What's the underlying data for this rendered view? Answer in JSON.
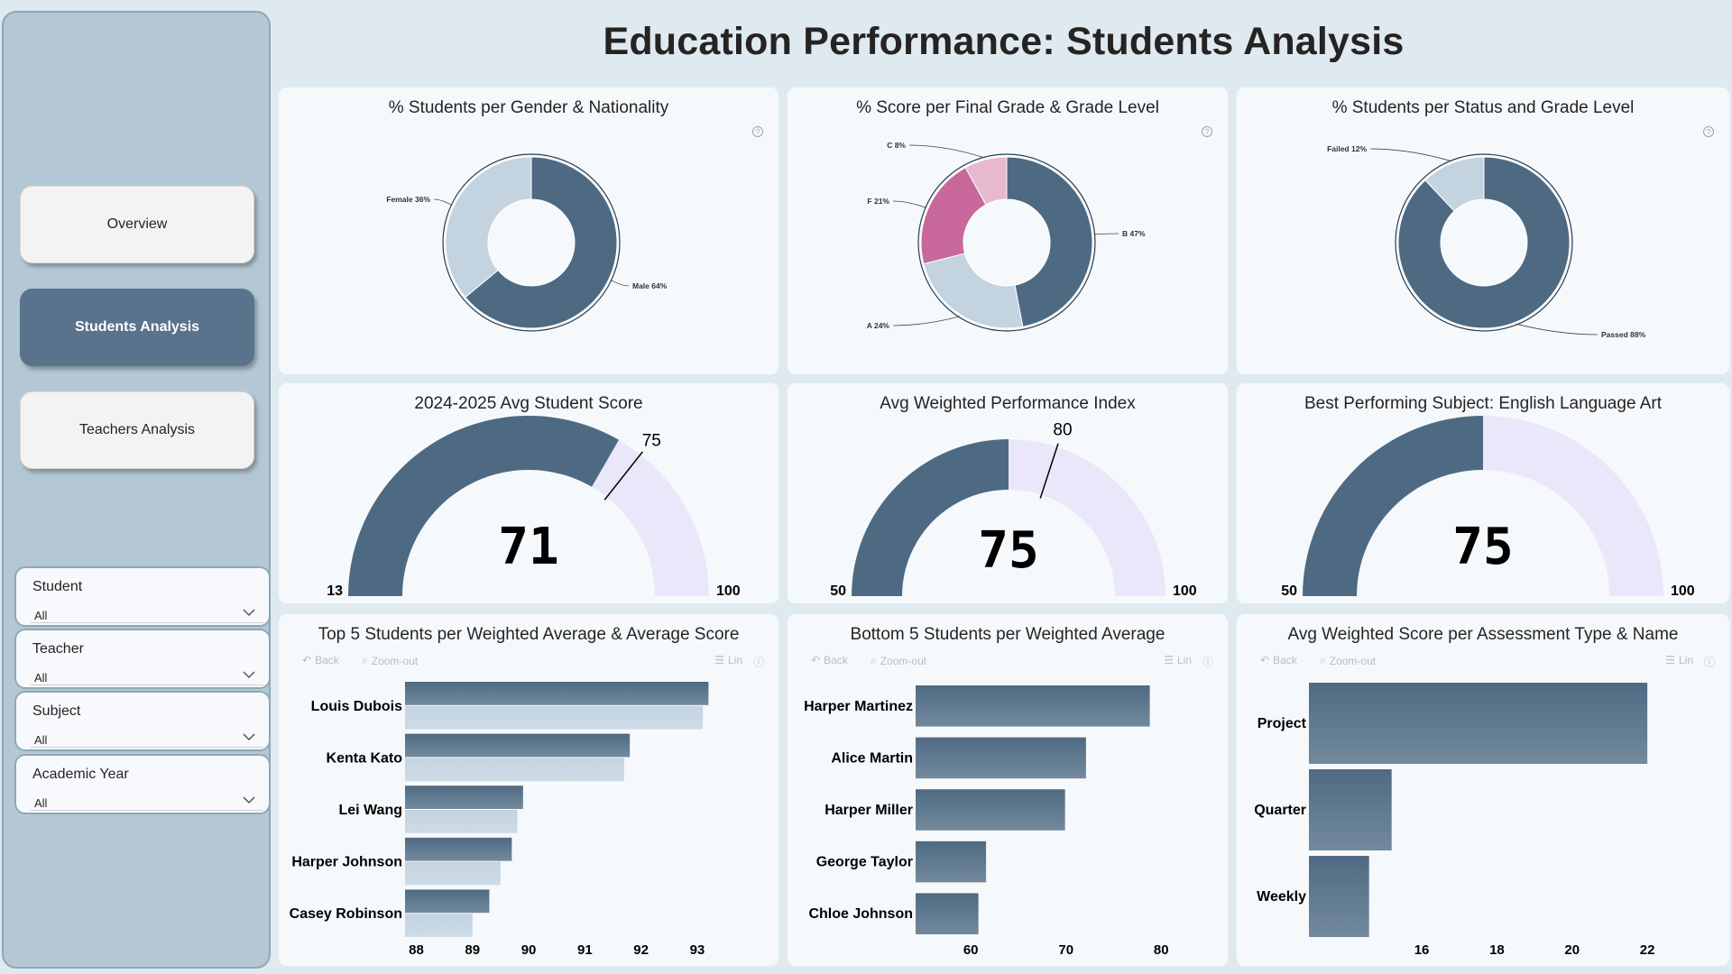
{
  "title": "Education Performance: Students Analysis",
  "nav": {
    "overview": "Overview",
    "students": "Students Analysis",
    "teachers": "Teachers Analysis"
  },
  "slicers": [
    {
      "title": "Student",
      "value": "All"
    },
    {
      "title": "Teacher",
      "value": "All"
    },
    {
      "title": "Subject",
      "value": "All"
    },
    {
      "title": "Academic Year",
      "value": "All"
    }
  ],
  "colors": {
    "primary": "#4e6a82",
    "primary_light": "#c3d3e0",
    "pink": "#c8679a",
    "pink_light": "#e7b9cf",
    "gauge_track": "#ebe7fa",
    "sidebar": "#b3c8d4"
  },
  "toolbar": {
    "back": "Back",
    "zoom_out": "Zoom-out",
    "lin": "Lin"
  },
  "cards": {
    "gender": {
      "title": "% Students per Gender & Nationality"
    },
    "grade": {
      "title": "% Score per Final Grade & Grade Level"
    },
    "status": {
      "title": "% Students per Status and Grade Level"
    },
    "gauge1": {
      "title": "2024-2025 Avg Student Score"
    },
    "gauge2": {
      "title": "Avg Weighted Performance Index"
    },
    "gauge3": {
      "title": "Best Performing Subject: English Language Art"
    },
    "top5": {
      "title": "Top 5 Students per Weighted Average & Average Score"
    },
    "bottom5": {
      "title": "Bottom 5 Students per Weighted Average"
    },
    "assessment": {
      "title": "Avg Weighted Score per Assessment Type & Name"
    }
  },
  "chart_data": [
    {
      "id": "gender",
      "type": "pie",
      "title": "% Students per Gender & Nationality",
      "slices": [
        {
          "label": "Male 64%",
          "value": 64,
          "color": "#4e6a82"
        },
        {
          "label": "Female 36%",
          "value": 36,
          "color": "#c3d3e0"
        }
      ]
    },
    {
      "id": "grade",
      "type": "pie",
      "title": "% Score per Final Grade & Grade Level",
      "slices": [
        {
          "label": "B 47%",
          "value": 47,
          "color": "#4e6a82"
        },
        {
          "label": "A 24%",
          "value": 24,
          "color": "#c3d3e0"
        },
        {
          "label": "F 21%",
          "value": 21,
          "color": "#c8679a"
        },
        {
          "label": "C 8%",
          "value": 8,
          "color": "#e7b9cf"
        }
      ]
    },
    {
      "id": "status",
      "type": "pie",
      "title": "% Students per Status and Grade Level",
      "slices": [
        {
          "label": "Passed 88%",
          "value": 88,
          "color": "#4e6a82"
        },
        {
          "label": "Failed 12%",
          "value": 12,
          "color": "#c3d3e0"
        }
      ]
    },
    {
      "id": "gauge1",
      "type": "gauge",
      "title": "2024-2025 Avg Student Score",
      "min": 13,
      "max": 100,
      "value": 71,
      "target": 75
    },
    {
      "id": "gauge2",
      "type": "gauge",
      "title": "Avg Weighted Performance Index",
      "min": 50,
      "max": 100,
      "value": 75,
      "target": 80
    },
    {
      "id": "gauge3",
      "type": "gauge",
      "title": "Best Performing Subject: English Language Art",
      "min": 50,
      "max": 100,
      "value": 75
    },
    {
      "id": "top5",
      "type": "bar",
      "title": "Top 5 Students per Weighted Average & Average Score",
      "categories": [
        "Louis Dubois",
        "Kenta Kato",
        "Lei Wang",
        "Harper Johnson",
        "Casey Robinson"
      ],
      "series": [
        {
          "name": "Weighted Average",
          "values": [
            93.2,
            91.8,
            89.9,
            89.7,
            89.3
          ],
          "color": "#4e6a82"
        },
        {
          "name": "Average Score",
          "values": [
            93.1,
            91.7,
            89.8,
            89.5,
            89.0
          ],
          "color": "#c3d3e0"
        }
      ],
      "xlim": [
        87.8,
        93.9
      ],
      "xticks": [
        88,
        89,
        90,
        91,
        92,
        93
      ]
    },
    {
      "id": "bottom5",
      "type": "bar",
      "title": "Bottom 5 Students per Weighted Average",
      "categories": [
        "Harper Martinez",
        "Alice Martin",
        "Harper Miller",
        "George Taylor",
        "Chloe Johnson"
      ],
      "series": [
        {
          "name": "Weighted Average",
          "values": [
            78.8,
            72.1,
            69.9,
            61.6,
            60.8
          ],
          "color": "#4e6a82"
        }
      ],
      "xlim": [
        54.2,
        83.2
      ],
      "xticks": [
        60,
        70,
        80
      ]
    },
    {
      "id": "assessment",
      "type": "bar",
      "title": "Avg Weighted Score per Assessment Type & Name",
      "categories": [
        "Project",
        "Quarter",
        "Weekly"
      ],
      "series": [
        {
          "name": "Avg Weighted Score",
          "values": [
            22.0,
            15.2,
            14.6
          ],
          "color": "#4e6a82"
        }
      ],
      "xlim": [
        13.0,
        23.7
      ],
      "xticks": [
        16,
        18,
        20,
        22
      ]
    }
  ]
}
